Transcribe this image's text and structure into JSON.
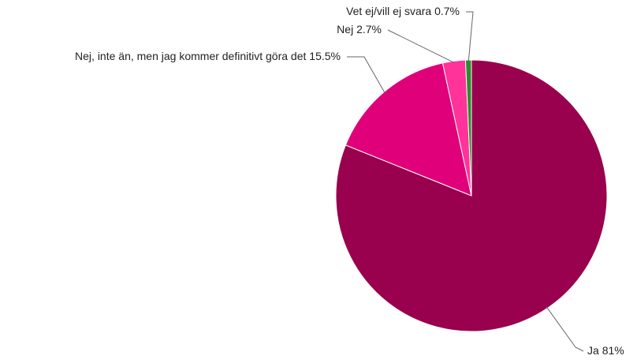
{
  "chart_data": {
    "type": "pie",
    "categories": [
      "Ja",
      "Nej, inte än, men jag kommer definitivt göra det",
      "Nej",
      "Vet ej/vill ej svara"
    ],
    "values": [
      81,
      15.5,
      2.7,
      0.7
    ],
    "value_labels": [
      "81%",
      "15.5%",
      "2.7%",
      "0.7%"
    ],
    "colors": [
      "#99004d",
      "#e0007a",
      "#ff3399",
      "#2e8b2e"
    ]
  }
}
